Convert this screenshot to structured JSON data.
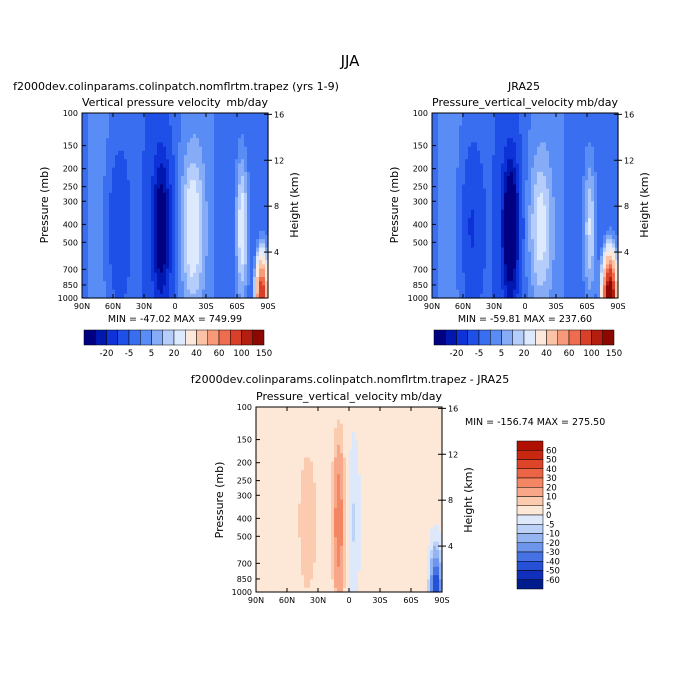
{
  "figure": {
    "title": "JJA"
  },
  "chart_data": [
    {
      "type": "heatmap",
      "title": "f2000dev.colinparams.colinpatch.nomflrtm.trapez (yrs 1-9)",
      "subtitle_left": "Vertical pressure velocity",
      "subtitle_right": "mb/day",
      "ylabel": "Pressure (mb)",
      "y2label": "Height (km)",
      "x_ticks": [
        "90N",
        "60N",
        "30N",
        "0",
        "30S",
        "60S",
        "90S"
      ],
      "y_ticks": [
        "100",
        "150",
        "200",
        "250",
        "300",
        "400",
        "500",
        "700",
        "850",
        "1000"
      ],
      "y2_ticks": [
        "16",
        "12",
        "8",
        "4"
      ],
      "stats": "MIN = -47.02   MAX = 749.99",
      "colorbar_labels": [
        "-20",
        "-5",
        "5",
        "20",
        "40",
        "60",
        "100",
        "150"
      ],
      "colorbar_colors": [
        "#000080",
        "#0018b0",
        "#0d32d8",
        "#1e50e8",
        "#3a6ef0",
        "#5a8cf5",
        "#86acf8",
        "#b4cdfb",
        "#dde9fd",
        "#fde8dc",
        "#fbc2a5",
        "#f79a7a",
        "#ef6c4e",
        "#d8402a",
        "#b31e10",
        "#8c0800"
      ],
      "features": [
        {
          "lat": 13,
          "width": 9,
          "value": -45
        },
        {
          "lat": -17,
          "width": 11,
          "value": 22
        },
        {
          "lat": 55,
          "width": 9,
          "value": -14
        },
        {
          "lat": -65,
          "width": 6,
          "value": 25
        },
        {
          "lat": -84,
          "width": 5,
          "value": 140
        }
      ]
    },
    {
      "type": "heatmap",
      "title": "JRA25",
      "subtitle_left": "Pressure_vertical_velocity",
      "subtitle_right": "mb/day",
      "ylabel": "Pressure (mb)",
      "y2label": "Height (km)",
      "x_ticks": [
        "90N",
        "60N",
        "30N",
        "0",
        "30S",
        "60S",
        "90S"
      ],
      "y_ticks": [
        "100",
        "150",
        "200",
        "250",
        "300",
        "400",
        "500",
        "700",
        "850",
        "1000"
      ],
      "y2_ticks": [
        "16",
        "12",
        "8",
        "4"
      ],
      "stats": "MIN = -59.81   MAX = 237.60",
      "colorbar_labels": [
        "-20",
        "-5",
        "5",
        "20",
        "40",
        "60",
        "100",
        "150"
      ],
      "colorbar_colors": [
        "#000080",
        "#0018b0",
        "#0d32d8",
        "#1e50e8",
        "#3a6ef0",
        "#5a8cf5",
        "#86acf8",
        "#b4cdfb",
        "#dde9fd",
        "#fde8dc",
        "#fbc2a5",
        "#f79a7a",
        "#ef6c4e",
        "#d8402a",
        "#b31e10",
        "#8c0800"
      ],
      "features": [
        {
          "lat": 14,
          "width": 8,
          "value": -55
        },
        {
          "lat": -15,
          "width": 11,
          "value": 18
        },
        {
          "lat": 52,
          "width": 9,
          "value": -15
        },
        {
          "lat": -63,
          "width": 6,
          "value": 20
        },
        {
          "lat": -82,
          "width": 6,
          "value": 200
        }
      ]
    },
    {
      "type": "heatmap",
      "title": "f2000dev.colinparams.colinpatch.nomflrtm.trapez - JRA25",
      "subtitle_left": "Pressure_vertical_velocity",
      "subtitle_right": "mb/day",
      "ylabel": "Pressure (mb)",
      "y2label": "Height (km)",
      "x_ticks": [
        "90N",
        "60N",
        "30N",
        "0",
        "30S",
        "60S",
        "90S"
      ],
      "y_ticks": [
        "100",
        "150",
        "200",
        "250",
        "300",
        "400",
        "500",
        "700",
        "850",
        "1000"
      ],
      "y2_ticks": [
        "16",
        "12",
        "8",
        "4"
      ],
      "stats": "MIN = -156.74   MAX = 275.50",
      "colorbar_labels": [
        "60",
        "50",
        "40",
        "30",
        "20",
        "10",
        "5",
        "0",
        "-5",
        "-10",
        "-20",
        "-30",
        "-40",
        "-50",
        "-60"
      ],
      "colorbar_colors": [
        "#b01000",
        "#c82810",
        "#dd4428",
        "#ec6446",
        "#f48664",
        "#f8a888",
        "#fbcbb0",
        "#fde8d8",
        "#dde9fb",
        "#bcd2f7",
        "#95b5f2",
        "#6e95ec",
        "#4772e3",
        "#2650d6",
        "#1030bb",
        "#001c8c"
      ],
      "features": [
        {
          "lat": 10,
          "width": 5,
          "value": 28
        },
        {
          "lat": 40,
          "width": 9,
          "value": 8
        },
        {
          "lat": -5,
          "width": 5,
          "value": -7
        },
        {
          "lat": -84,
          "width": 5,
          "value": -55
        }
      ]
    }
  ]
}
